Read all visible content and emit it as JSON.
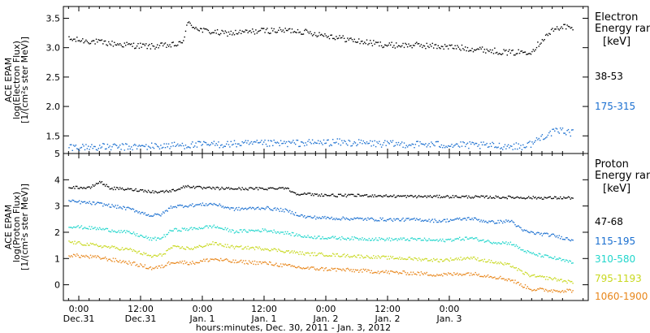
{
  "xaxis": {
    "title": "hours:minutes, Dec. 30, 2011 - Jan. 3, 2012",
    "tick_times": [
      "0:00",
      "12:00",
      "0:00",
      "12:00",
      "0:00",
      "12:00",
      "0:00"
    ],
    "tick_dates": [
      "Dec.31",
      "Dec.31",
      "Jan. 1",
      "Jan. 1",
      "Jan. 2",
      "Jan. 2",
      "Jan. 3"
    ],
    "range_hours": [
      -3,
      99
    ]
  },
  "chart_data": [
    {
      "type": "scatter",
      "panel": "electron",
      "ylabel_lines": [
        "ACE EPAM",
        "log(Electron Flux)",
        "[1/(cm²s ster MeV)]"
      ],
      "ylim": [
        1.2,
        3.7
      ],
      "yticks": [
        "1.5",
        "2.0",
        "2.5",
        "3.0",
        "3.5"
      ],
      "ytick_values": [
        1.5,
        2.0,
        2.5,
        3.0,
        3.5
      ],
      "legend_title": [
        "Electron",
        "Energy ran"
      ],
      "legend_unit": "[keV]",
      "series": [
        {
          "name": "38-53",
          "color": "#000000",
          "noise": 0.05,
          "x": [
            -2,
            2,
            6,
            10,
            14,
            18,
            20,
            21,
            22,
            24,
            28,
            32,
            36,
            42,
            48,
            54,
            60,
            66,
            72,
            78,
            84,
            88,
            90,
            92,
            94,
            96
          ],
          "y": [
            3.15,
            3.12,
            3.08,
            3.05,
            3.03,
            3.05,
            3.08,
            3.42,
            3.38,
            3.3,
            3.25,
            3.27,
            3.3,
            3.3,
            3.22,
            3.12,
            3.05,
            3.05,
            3.02,
            2.98,
            2.92,
            2.95,
            3.15,
            3.3,
            3.38,
            3.32
          ]
        },
        {
          "name": "175-315",
          "color": "#1a6fd0",
          "noise": 0.06,
          "x": [
            -2,
            10,
            20,
            30,
            40,
            50,
            60,
            70,
            80,
            86,
            88,
            90,
            92,
            94,
            96
          ],
          "y": [
            1.32,
            1.32,
            1.35,
            1.37,
            1.38,
            1.4,
            1.37,
            1.36,
            1.34,
            1.33,
            1.38,
            1.5,
            1.57,
            1.6,
            1.55
          ]
        }
      ]
    },
    {
      "type": "scatter",
      "panel": "proton",
      "ylabel_lines": [
        "ACE EPAM",
        "log(Proton Flux)",
        "[1/(cm²s ster MeV)]"
      ],
      "ylim": [
        -0.6,
        5.0
      ],
      "yticks": [
        "0",
        "1",
        "2",
        "3",
        "4",
        "5"
      ],
      "ytick_values": [
        0,
        1,
        2,
        3,
        4,
        5
      ],
      "legend_title": [
        "Proton",
        "Energy ran"
      ],
      "legend_unit": "[keV]",
      "series": [
        {
          "name": "47-68",
          "color": "#000000",
          "noise": 0.05,
          "x": [
            -2,
            2,
            4,
            6,
            12,
            15,
            18,
            21,
            24,
            30,
            36,
            40,
            42,
            46,
            50,
            56,
            60,
            66,
            72,
            78,
            84,
            90,
            96
          ],
          "y": [
            3.75,
            3.7,
            3.95,
            3.7,
            3.62,
            3.55,
            3.6,
            3.78,
            3.7,
            3.68,
            3.68,
            3.72,
            3.5,
            3.45,
            3.42,
            3.42,
            3.4,
            3.38,
            3.38,
            3.36,
            3.35,
            3.33,
            3.33
          ]
        },
        {
          "name": "115-195",
          "color": "#1a6fd0",
          "noise": 0.06,
          "x": [
            -2,
            4,
            10,
            14,
            16,
            18,
            22,
            26,
            30,
            36,
            40,
            44,
            50,
            60,
            66,
            70,
            76,
            80,
            84,
            86,
            88,
            92,
            96
          ],
          "y": [
            3.2,
            3.1,
            2.9,
            2.65,
            2.7,
            3.0,
            3.05,
            3.1,
            2.9,
            2.95,
            2.85,
            2.6,
            2.55,
            2.5,
            2.5,
            2.45,
            2.55,
            2.4,
            2.45,
            2.1,
            2.0,
            1.9,
            1.72
          ]
        },
        {
          "name": "310-580",
          "color": "#22d6cc",
          "noise": 0.06,
          "x": [
            -2,
            4,
            10,
            14,
            16,
            18,
            22,
            26,
            30,
            36,
            40,
            44,
            50,
            60,
            66,
            70,
            76,
            80,
            84,
            86,
            88,
            92,
            96
          ],
          "y": [
            2.25,
            2.15,
            2.0,
            1.75,
            1.8,
            2.1,
            2.15,
            2.25,
            2.05,
            2.1,
            2.0,
            1.85,
            1.8,
            1.75,
            1.75,
            1.7,
            1.8,
            1.65,
            1.6,
            1.35,
            1.2,
            1.05,
            0.85
          ]
        },
        {
          "name": "795-1193",
          "color": "#c8d81e",
          "noise": 0.06,
          "x": [
            -2,
            4,
            10,
            14,
            16,
            18,
            22,
            26,
            30,
            36,
            40,
            44,
            50,
            60,
            66,
            70,
            76,
            80,
            84,
            86,
            88,
            92,
            96
          ],
          "y": [
            1.65,
            1.5,
            1.35,
            1.1,
            1.15,
            1.45,
            1.4,
            1.6,
            1.45,
            1.4,
            1.3,
            1.2,
            1.15,
            1.05,
            1.0,
            0.95,
            1.05,
            0.9,
            0.75,
            0.5,
            0.35,
            0.25,
            0.1
          ]
        },
        {
          "name": "1060-1900",
          "color": "#e8861a",
          "noise": 0.07,
          "x": [
            -2,
            4,
            10,
            14,
            16,
            18,
            22,
            26,
            30,
            36,
            40,
            44,
            50,
            60,
            66,
            70,
            76,
            80,
            84,
            86,
            88,
            92,
            96
          ],
          "y": [
            1.15,
            1.05,
            0.85,
            0.65,
            0.7,
            0.9,
            0.85,
            1.0,
            0.9,
            0.85,
            0.75,
            0.65,
            0.6,
            0.5,
            0.45,
            0.4,
            0.45,
            0.35,
            0.2,
            0.0,
            -0.15,
            -0.2,
            -0.2
          ]
        }
      ]
    }
  ]
}
